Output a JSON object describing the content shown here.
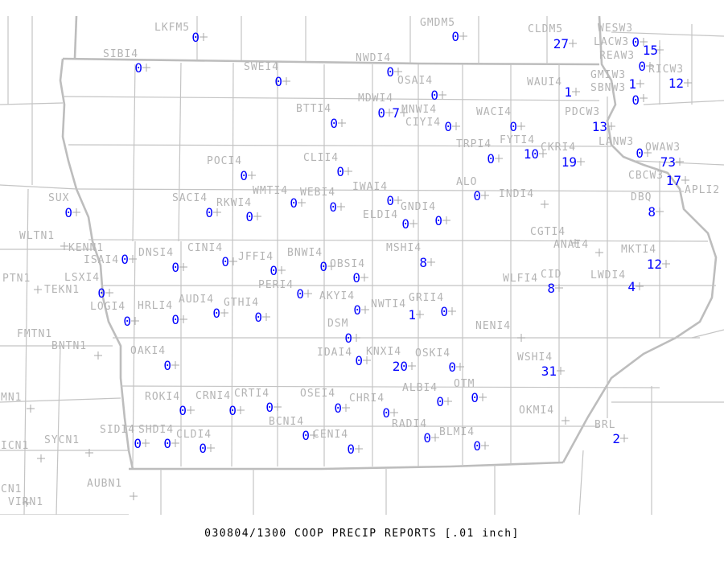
{
  "title": "030804/1300 COOP PRECIP REPORTS [.01 inch]",
  "colors": {
    "station_label": "#b4b4b4",
    "value": "#0000ff",
    "boundary": "#c4c4c4",
    "title": "#000000"
  },
  "stations": [
    {
      "id": "LKFM5",
      "value": "0"
    },
    {
      "id": "SIBI4",
      "value": "0"
    },
    {
      "id": "SWEI4",
      "value": "0"
    },
    {
      "id": "NWDI4",
      "value": "0"
    },
    {
      "id": "GMDM5",
      "value": "0"
    },
    {
      "id": "CLDM5",
      "value": "27"
    },
    {
      "id": "WESW3",
      "value": "0"
    },
    {
      "id": "LACW3",
      "value": "15"
    },
    {
      "id": "REAW3",
      "value": "0"
    },
    {
      "id": "GMIW3",
      "value": "1"
    },
    {
      "id": "RICW3",
      "value": "12"
    },
    {
      "id": "SBNW3",
      "value": "0"
    },
    {
      "id": "OSAI4",
      "value": "0"
    },
    {
      "id": "WAUI4",
      "value": "1"
    },
    {
      "id": "MDWI4",
      "value": "0"
    },
    {
      "id": "MNWI4",
      "value": "7"
    },
    {
      "id": "CIYI4",
      "value": "0"
    },
    {
      "id": "WACI4",
      "value": "0"
    },
    {
      "id": "PDCW3",
      "value": "13"
    },
    {
      "id": "BTTI4",
      "value": "0"
    },
    {
      "id": "TRPI4",
      "value": "0"
    },
    {
      "id": "FYTI4",
      "value": "10"
    },
    {
      "id": "CKRI4",
      "value": "19"
    },
    {
      "id": "LANW3",
      "value": "0"
    },
    {
      "id": "OWAW3",
      "value": "73"
    },
    {
      "id": "CBCW3",
      "value": "17"
    },
    {
      "id": "APLI2",
      "value": ""
    },
    {
      "id": "POCI4",
      "value": "0"
    },
    {
      "id": "CLII4",
      "value": "0"
    },
    {
      "id": "ALO",
      "value": "0"
    },
    {
      "id": "INDI4",
      "value": ""
    },
    {
      "id": "IWAI4",
      "value": "0"
    },
    {
      "id": "ELDI4",
      "value": "0"
    },
    {
      "id": "GNDI4",
      "value": "0"
    },
    {
      "id": "DBQ",
      "value": "8"
    },
    {
      "id": "SUX",
      "value": "0"
    },
    {
      "id": "SACI4",
      "value": "0"
    },
    {
      "id": "RKWI4",
      "value": "0"
    },
    {
      "id": "WMTI4",
      "value": "0"
    },
    {
      "id": "WEBI4",
      "value": "0"
    },
    {
      "id": "WLTN1",
      "value": ""
    },
    {
      "id": "KENN1",
      "value": ""
    },
    {
      "id": "ISAI4",
      "value": "0"
    },
    {
      "id": "DNSI4",
      "value": "0"
    },
    {
      "id": "CINI4",
      "value": "0"
    },
    {
      "id": "JFFI4",
      "value": "0"
    },
    {
      "id": "BNWI4",
      "value": "0"
    },
    {
      "id": "OBSI4",
      "value": "0"
    },
    {
      "id": "PERI4",
      "value": "0"
    },
    {
      "id": "PTN1",
      "value": ""
    },
    {
      "id": "TEKN1",
      "value": ""
    },
    {
      "id": "LSXI4",
      "value": "0"
    },
    {
      "id": "LOGI4",
      "value": "0"
    },
    {
      "id": "HRLI4",
      "value": "0"
    },
    {
      "id": "AUDI4",
      "value": "0"
    },
    {
      "id": "GTHI4",
      "value": "0"
    },
    {
      "id": "AKYI4",
      "value": "0"
    },
    {
      "id": "NWTI4",
      "value": "1"
    },
    {
      "id": "GRII4",
      "value": "0"
    },
    {
      "id": "MSHI4",
      "value": "8"
    },
    {
      "id": "CGTI4",
      "value": ""
    },
    {
      "id": "ANAI4",
      "value": ""
    },
    {
      "id": "MKTI4",
      "value": "12"
    },
    {
      "id": "LWDI4",
      "value": "4"
    },
    {
      "id": "WLFI4",
      "value": ""
    },
    {
      "id": "CID",
      "value": "8"
    },
    {
      "id": "NENI4",
      "value": ""
    },
    {
      "id": "DSM",
      "value": "0"
    },
    {
      "id": "FMTN1",
      "value": ""
    },
    {
      "id": "BNTN1",
      "value": ""
    },
    {
      "id": "OAKI4",
      "value": "0"
    },
    {
      "id": "IDAI4",
      "value": "0"
    },
    {
      "id": "KNXI4",
      "value": "20"
    },
    {
      "id": "OSKI4",
      "value": "0"
    },
    {
      "id": "WSHI4",
      "value": "31"
    },
    {
      "id": "MN1",
      "value": ""
    },
    {
      "id": "ROKI4",
      "value": "0"
    },
    {
      "id": "CRNI4",
      "value": "0"
    },
    {
      "id": "CRTI4",
      "value": "0"
    },
    {
      "id": "OSEI4",
      "value": "0"
    },
    {
      "id": "CHRI4",
      "value": "0"
    },
    {
      "id": "ALBI4",
      "value": "0"
    },
    {
      "id": "OTM",
      "value": "0"
    },
    {
      "id": "OKMI4",
      "value": ""
    },
    {
      "id": "BCNI4",
      "value": "0"
    },
    {
      "id": "CENI4",
      "value": "0"
    },
    {
      "id": "RADI4",
      "value": "0"
    },
    {
      "id": "BLMI4",
      "value": "0"
    },
    {
      "id": "BRL",
      "value": "2"
    },
    {
      "id": "SIDI4",
      "value": "0"
    },
    {
      "id": "SHDI4",
      "value": "0"
    },
    {
      "id": "CLDI4",
      "value": "0"
    },
    {
      "id": "ICN1",
      "value": ""
    },
    {
      "id": "SYCN1",
      "value": ""
    },
    {
      "id": "AUBN1",
      "value": ""
    },
    {
      "id": "CN1",
      "value": ""
    },
    {
      "id": "VIRN1",
      "value": ""
    }
  ]
}
